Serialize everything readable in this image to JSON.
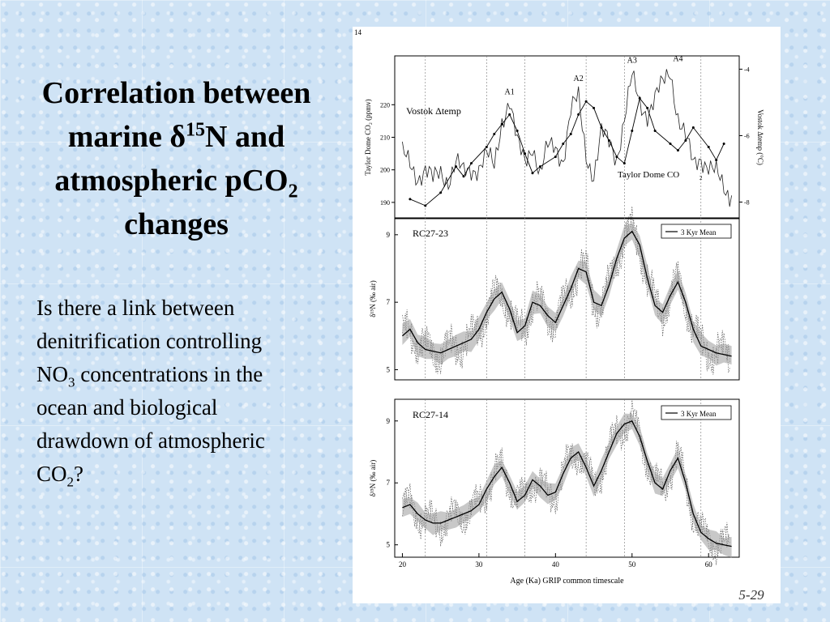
{
  "slide": {
    "title": {
      "part1": "Correlation between marine ",
      "delta": "δ",
      "sup": "15",
      "part2": "N and atmospheric pCO",
      "sub": "2",
      "part3": " changes"
    },
    "body": {
      "part1": "Is there a link between denitrification controlling NO",
      "sub1": "3",
      "part2": " concentrations in the ocean and biological drawdown of atmospheric CO",
      "sub2": "2",
      "part3": "?"
    },
    "figure_number": "14",
    "handwritten_note": "5-29"
  },
  "chart_data": [
    {
      "type": "line",
      "panel": "top",
      "ylabel_left": "Taylor Dome CO₂ (ppmv)",
      "ylabel_right": "Vostok Δtemp (°C)",
      "yticks_left": [
        "190",
        "200",
        "210",
        "220"
      ],
      "yticks_right": [
        "-4",
        "-6",
        "-8"
      ],
      "ylim_left": [
        185,
        235
      ],
      "ylim_right": [
        -8.5,
        -3.6
      ],
      "annotations": [
        "A1",
        "A2",
        "A3",
        "A4"
      ],
      "series": [
        {
          "name": "Vostok Δtemp",
          "x": [
            20,
            21,
            22,
            23,
            24,
            25,
            26,
            27,
            28,
            29,
            30,
            31,
            32,
            33,
            34,
            35,
            36,
            37,
            38,
            39,
            40,
            41,
            42,
            43,
            44,
            45,
            46,
            47,
            48,
            49,
            50,
            51,
            52,
            53,
            54,
            55,
            56,
            57,
            58,
            59,
            60,
            61,
            62,
            63
          ],
          "values": [
            -6.6,
            -6.9,
            -7.2,
            -7.0,
            -7.4,
            -7.1,
            -7.3,
            -6.8,
            -7.2,
            -7.0,
            -6.9,
            -6.6,
            -7.0,
            -5.5,
            -4.9,
            -6.3,
            -6.8,
            -6.2,
            -7.2,
            -6.4,
            -6.3,
            -6.7,
            -5.3,
            -4.9,
            -6.5,
            -7.2,
            -6.0,
            -6.2,
            -6.6,
            -5.5,
            -4.3,
            -5.0,
            -5.3,
            -4.9,
            -4.5,
            -4.0,
            -5.4,
            -6.1,
            -6.9,
            -6.6,
            -6.9,
            -7.2,
            -7.6,
            -7.8
          ]
        },
        {
          "name": "Taylor Dome CO₂",
          "x": [
            21,
            23,
            25,
            27,
            28,
            29,
            31,
            32,
            33,
            34,
            35,
            36,
            37,
            38,
            40,
            41,
            42,
            43,
            44,
            45,
            46,
            47,
            48,
            49,
            50,
            51,
            52,
            53,
            55,
            56,
            57,
            58,
            60,
            61,
            62
          ],
          "values": [
            191,
            189,
            193,
            201,
            198,
            202,
            207,
            211,
            214,
            217,
            212,
            205,
            199,
            201,
            204,
            208,
            211,
            217,
            221,
            219,
            213,
            209,
            204,
            202,
            212,
            222,
            219,
            212,
            208,
            206,
            209,
            213,
            207,
            203,
            208
          ]
        }
      ]
    },
    {
      "type": "line",
      "panel": "middle",
      "title": "RC27-23",
      "ylabel": "δ¹⁵N (‰ air)",
      "yticks": [
        "5",
        "7",
        "9"
      ],
      "ylim": [
        4.7,
        9.5
      ],
      "legend": "3 Kyr Mean",
      "series": [
        {
          "name": "3 Kyr Mean",
          "x": [
            20,
            21,
            22,
            23,
            24,
            25,
            26,
            27,
            28,
            29,
            30,
            31,
            32,
            33,
            34,
            35,
            36,
            37,
            38,
            39,
            40,
            41,
            42,
            43,
            44,
            45,
            46,
            47,
            48,
            49,
            50,
            51,
            52,
            53,
            54,
            55,
            56,
            57,
            58,
            59,
            60,
            61,
            62,
            63
          ],
          "values": [
            6.0,
            6.2,
            5.8,
            5.6,
            5.55,
            5.5,
            5.6,
            5.7,
            5.8,
            5.9,
            6.2,
            6.7,
            7.1,
            7.3,
            6.8,
            6.1,
            6.3,
            7.0,
            6.9,
            6.6,
            6.4,
            6.9,
            7.4,
            8.0,
            7.9,
            7.0,
            6.9,
            7.5,
            8.3,
            8.9,
            9.1,
            8.7,
            7.7,
            6.9,
            6.7,
            7.2,
            7.6,
            7.0,
            6.2,
            5.7,
            5.6,
            5.5,
            5.45,
            5.4
          ]
        }
      ]
    },
    {
      "type": "line",
      "panel": "bottom",
      "title": "RC27-14",
      "ylabel": "δ¹⁵N (‰ air)",
      "xlabel": "Age (Ka) GRIP common timescale",
      "xticks": [
        "20",
        "30",
        "40",
        "50",
        "60"
      ],
      "yticks": [
        "5",
        "7",
        "9"
      ],
      "xlim": [
        19,
        64
      ],
      "ylim": [
        4.6,
        9.7
      ],
      "legend": "3 Kyr Mean",
      "series": [
        {
          "name": "3 Kyr Mean",
          "x": [
            20,
            21,
            22,
            23,
            24,
            25,
            26,
            27,
            28,
            29,
            30,
            31,
            32,
            33,
            34,
            35,
            36,
            37,
            38,
            39,
            40,
            41,
            42,
            43,
            44,
            45,
            46,
            47,
            48,
            49,
            50,
            51,
            52,
            53,
            54,
            55,
            56,
            57,
            58,
            59,
            60,
            61,
            62,
            63
          ],
          "values": [
            6.2,
            6.3,
            6.0,
            5.8,
            5.7,
            5.7,
            5.8,
            5.9,
            6.0,
            6.1,
            6.3,
            6.8,
            7.2,
            7.5,
            7.0,
            6.4,
            6.6,
            7.1,
            6.9,
            6.6,
            6.7,
            7.3,
            7.8,
            8.0,
            7.5,
            6.9,
            7.4,
            8.0,
            8.6,
            8.9,
            9.0,
            8.5,
            7.7,
            7.0,
            6.8,
            7.4,
            7.8,
            7.0,
            6.0,
            5.4,
            5.2,
            5.05,
            5.0,
            4.95
          ]
        }
      ]
    }
  ]
}
